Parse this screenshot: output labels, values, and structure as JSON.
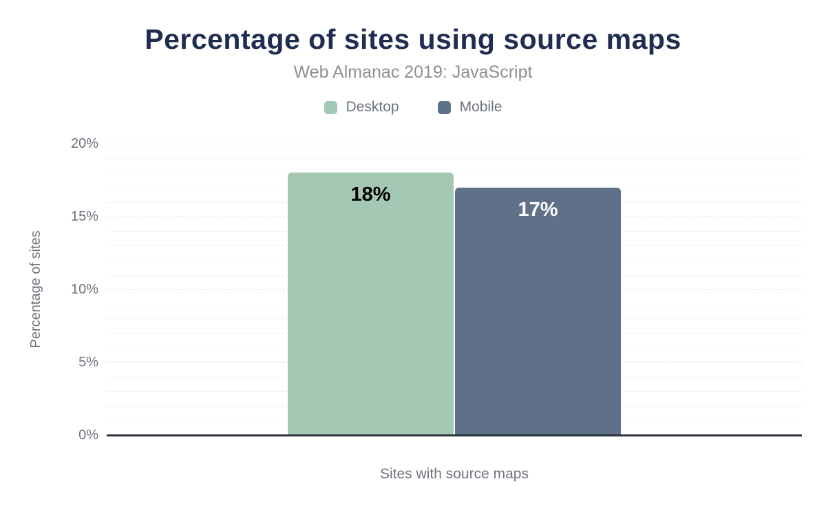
{
  "header": {
    "title": "Percentage of sites using source maps",
    "subtitle": "Web Almanac 2019: JavaScript"
  },
  "legend": [
    {
      "label": "Desktop",
      "color": "#a5c8b5"
    },
    {
      "label": "Mobile",
      "color": "#5e7189"
    }
  ],
  "chart_data": {
    "type": "bar",
    "title": "Percentage of sites using source maps",
    "subtitle": "Web Almanac 2019: JavaScript",
    "categories": [
      "Sites with source maps"
    ],
    "series": [
      {
        "name": "Desktop",
        "values": [
          18
        ],
        "value_labels": [
          "18%"
        ],
        "color": "#a5c8b5",
        "value_label_color": "#000000"
      },
      {
        "name": "Mobile",
        "values": [
          17
        ],
        "value_labels": [
          "17%"
        ],
        "color": "#5e7189",
        "value_label_color": "#ffffff"
      }
    ],
    "xlabel": "Sites with source maps",
    "ylabel": "Percentage of sites",
    "ylim": [
      0,
      20
    ],
    "yticks": [
      0,
      5,
      10,
      15,
      20
    ],
    "ytick_labels": [
      "0%",
      "5%",
      "10%",
      "15%",
      "20%"
    ],
    "minor_gridline_step": 1,
    "major_gridline_step": 5,
    "grid": true,
    "legend_position": "top"
  },
  "colors": {
    "background": "#ffffff",
    "title_text": "#1f2d50",
    "subtitle_text": "#8b9097",
    "axis_text": "#6e747d",
    "axis_line": "#2e333b",
    "grid_minor": "#f4f4f5",
    "grid_major": "#e7e8ea"
  }
}
